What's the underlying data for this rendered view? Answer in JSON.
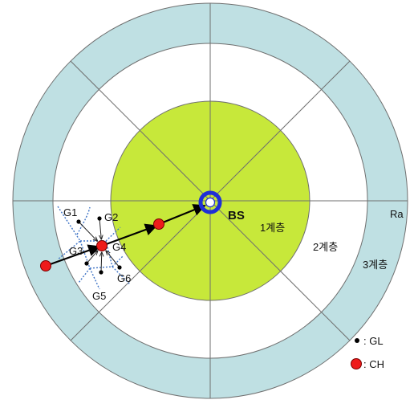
{
  "diagram": {
    "colors": {
      "outer_ring": "#bfe0e3",
      "middle_ring": "#ffffff",
      "inner_core": "#c7e83a",
      "ring_stroke": "#6f6f6f",
      "bs_ring": "#1f2fd6",
      "node_dot": "#000000",
      "ch_dot": "#ee1b1b",
      "cluster_boundary": "#3f74c6"
    },
    "labels": {
      "bs": "BS",
      "layer1": "1계층",
      "layer2": "2계층",
      "layer3": "3계층",
      "ra": "Ra",
      "g1": "G1",
      "g2": "G2",
      "g3": "G3",
      "g4": "G4",
      "g5": "G5",
      "g6": "G6"
    },
    "legend": {
      "gl": ": GL",
      "ch": ": CH"
    }
  }
}
